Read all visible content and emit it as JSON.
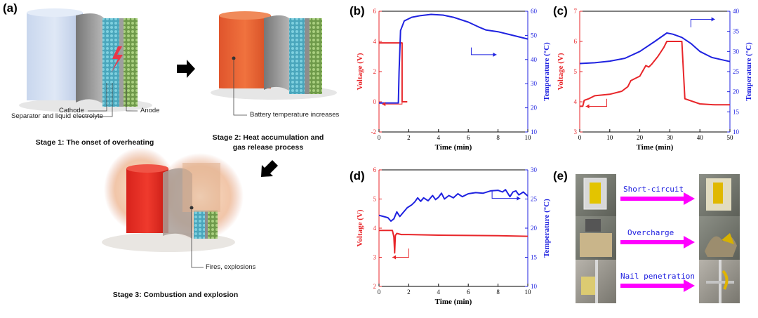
{
  "panels": {
    "a": "(a)",
    "b": "(b)",
    "c": "(c)",
    "d": "(d)",
    "e": "(e)"
  },
  "schematic": {
    "stage1_caption": "Stage 1: The onset of overheating",
    "stage2_caption_line1": "Stage 2: Heat accumulation and",
    "stage2_caption_line2": "gas release process",
    "stage3_caption": "Stage 3: Combustion and explosion",
    "callout_cathode": "Cathode",
    "callout_anode": "Anode",
    "callout_separator": "Separator and liquid electrolyte",
    "callout_temp": "Battery temperature increases",
    "callout_fire": "Fires, explosions"
  },
  "colors": {
    "voltage": "#e8262a",
    "temperature": "#1f22e0",
    "arrow": "#ff00ff",
    "cathode": "#58b7c9",
    "anode": "#8fb56a"
  },
  "chart_data": [
    {
      "id": "b",
      "type": "line",
      "xlabel": "Time (min)",
      "ylabel_left": "Voltage (V)",
      "ylabel_right": "Temperature (°C)",
      "xlim": [
        0,
        10
      ],
      "ylim_left": [
        -2,
        6
      ],
      "ylim_right": [
        10,
        60
      ],
      "xticks": [
        "0",
        "2",
        "4",
        "6",
        "8",
        "10"
      ],
      "yticks_left": [
        "-2",
        "0",
        "2",
        "4",
        "6"
      ],
      "yticks_right": [
        "10",
        "20",
        "30",
        "40",
        "50",
        "60"
      ],
      "series": [
        {
          "name": "Voltage",
          "axis": "left",
          "points": [
            [
              0,
              3.9
            ],
            [
              1.0,
              3.9
            ],
            [
              1.55,
              3.9
            ],
            [
              1.55,
              0
            ],
            [
              1.9,
              0
            ]
          ]
        },
        {
          "name": "Temperature",
          "axis": "right",
          "points": [
            [
              0,
              22
            ],
            [
              1.3,
              22
            ],
            [
              1.35,
              35
            ],
            [
              1.45,
              52
            ],
            [
              1.7,
              56
            ],
            [
              2.2,
              57.5
            ],
            [
              2.8,
              58.2
            ],
            [
              3.5,
              58.7
            ],
            [
              4.3,
              58.4
            ],
            [
              5.0,
              57.5
            ],
            [
              6.0,
              55.5
            ],
            [
              6.7,
              53.5
            ],
            [
              7.2,
              52.2
            ],
            [
              8.0,
              51.5
            ],
            [
              9.0,
              50
            ],
            [
              10,
              48.5
            ]
          ]
        }
      ]
    },
    {
      "id": "c",
      "type": "line",
      "xlabel": "Time (min)",
      "ylabel_left": "Voltage (V)",
      "ylabel_right": "Temperature (°C)",
      "xlim": [
        0,
        50
      ],
      "ylim_left": [
        3,
        7
      ],
      "ylim_right": [
        10,
        40
      ],
      "xticks": [
        "0",
        "10",
        "20",
        "30",
        "40",
        "50"
      ],
      "yticks_left": [
        "3",
        "4",
        "5",
        "6",
        "7"
      ],
      "yticks_right": [
        "10",
        "15",
        "20",
        "25",
        "30",
        "35",
        "40"
      ],
      "series": [
        {
          "name": "Voltage",
          "axis": "left",
          "points": [
            [
              0,
              3.85
            ],
            [
              1,
              3.85
            ],
            [
              1.5,
              4.05
            ],
            [
              3,
              4.1
            ],
            [
              5,
              4.2
            ],
            [
              10,
              4.25
            ],
            [
              14,
              4.35
            ],
            [
              16,
              4.5
            ],
            [
              17,
              4.7
            ],
            [
              19,
              4.8
            ],
            [
              20,
              4.85
            ],
            [
              22,
              5.2
            ],
            [
              23,
              5.15
            ],
            [
              24,
              5.25
            ],
            [
              26,
              5.5
            ],
            [
              28,
              5.8
            ],
            [
              29,
              6.0
            ],
            [
              34,
              6.0
            ],
            [
              35,
              4.1
            ],
            [
              40,
              3.93
            ],
            [
              45,
              3.9
            ],
            [
              50,
              3.9
            ]
          ]
        },
        {
          "name": "Temperature",
          "axis": "right",
          "points": [
            [
              0,
              27
            ],
            [
              5,
              27.2
            ],
            [
              10,
              27.6
            ],
            [
              15,
              28.3
            ],
            [
              20,
              30
            ],
            [
              25,
              32.5
            ],
            [
              29,
              34.6
            ],
            [
              31,
              34.3
            ],
            [
              34,
              33.5
            ],
            [
              37,
              32
            ],
            [
              40,
              30
            ],
            [
              44,
              28.5
            ],
            [
              47,
              28
            ],
            [
              50,
              27.5
            ]
          ]
        }
      ]
    },
    {
      "id": "d",
      "type": "line",
      "xlabel": "Time (min)",
      "ylabel_left": "Voltage (V)",
      "ylabel_right": "Temperature (°C)",
      "xlim": [
        0,
        10
      ],
      "ylim_left": [
        2,
        6
      ],
      "ylim_right": [
        10,
        30
      ],
      "xticks": [
        "0",
        "2",
        "4",
        "6",
        "8",
        "10"
      ],
      "yticks_left": [
        "2",
        "3",
        "4",
        "5",
        "6"
      ],
      "yticks_right": [
        "10",
        "15",
        "20",
        "25",
        "30"
      ],
      "series": [
        {
          "name": "Voltage",
          "axis": "left",
          "points": [
            [
              0,
              3.92
            ],
            [
              0.9,
              3.92
            ],
            [
              1.0,
              3.7
            ],
            [
              1.05,
              3.15
            ],
            [
              1.1,
              3.75
            ],
            [
              1.2,
              3.82
            ],
            [
              1.5,
              3.78
            ],
            [
              2,
              3.78
            ],
            [
              4,
              3.76
            ],
            [
              6,
              3.75
            ],
            [
              8,
              3.74
            ],
            [
              10,
              3.72
            ]
          ]
        },
        {
          "name": "Temperature",
          "axis": "right",
          "points": [
            [
              0,
              22.2
            ],
            [
              0.3,
              22
            ],
            [
              0.6,
              21.8
            ],
            [
              0.8,
              21.2
            ],
            [
              1.0,
              21.6
            ],
            [
              1.2,
              22.8
            ],
            [
              1.4,
              22
            ],
            [
              1.6,
              22.6
            ],
            [
              1.9,
              23.5
            ],
            [
              2.2,
              24
            ],
            [
              2.4,
              24.5
            ],
            [
              2.6,
              25.2
            ],
            [
              2.8,
              24.6
            ],
            [
              3.0,
              25.2
            ],
            [
              3.3,
              24.7
            ],
            [
              3.6,
              25.6
            ],
            [
              3.8,
              24.9
            ],
            [
              4.0,
              25.3
            ],
            [
              4.2,
              26
            ],
            [
              4.4,
              25
            ],
            [
              4.7,
              25.6
            ],
            [
              5.0,
              25.2
            ],
            [
              5.3,
              25.9
            ],
            [
              5.6,
              25.4
            ],
            [
              6.0,
              25.9
            ],
            [
              6.5,
              26.1
            ],
            [
              7.0,
              26
            ],
            [
              7.5,
              26.4
            ],
            [
              8.0,
              26.5
            ],
            [
              8.3,
              26.2
            ],
            [
              8.5,
              26.6
            ],
            [
              8.8,
              25.4
            ],
            [
              9.0,
              26.2
            ],
            [
              9.2,
              26.4
            ],
            [
              9.4,
              25.7
            ],
            [
              9.7,
              26.2
            ],
            [
              10,
              25.5
            ]
          ]
        }
      ]
    }
  ],
  "photos": {
    "labels": [
      "Short-circuit",
      "Overcharge",
      "Nail penetration"
    ]
  }
}
